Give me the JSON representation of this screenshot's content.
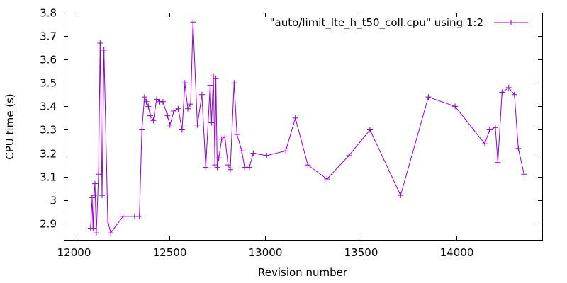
{
  "chart_data": {
    "type": "line",
    "title": "",
    "xlabel": "Revision number",
    "ylabel": "CPU time (s)",
    "xlim": [
      11950,
      14450
    ],
    "ylim": [
      2.83,
      3.8
    ],
    "xticks": [
      12000,
      12500,
      13000,
      13500,
      14000
    ],
    "xtick_labels": [
      "12000",
      "12500",
      "13000",
      "13500",
      "14000"
    ],
    "yticks": [
      2.9,
      3.0,
      3.1,
      3.2,
      3.3,
      3.4,
      3.5,
      3.6,
      3.7,
      3.8
    ],
    "ytick_labels": [
      "2.9",
      "3",
      "3.1",
      "3.2",
      "3.3",
      "3.4",
      "3.5",
      "3.6",
      "3.7",
      "3.8"
    ],
    "grid": false,
    "legend_position": "top-right",
    "marker": "plus",
    "color": "#9400d3",
    "series": [
      {
        "name": "\"auto/limit_lte_h_t50_coll.cpu\" using 1:2",
        "x": [
          12090,
          12098,
          12103,
          12108,
          12113,
          12120,
          12132,
          12140,
          12150,
          12160,
          12180,
          12195,
          12260,
          12320,
          12345,
          12358,
          12372,
          12382,
          12392,
          12402,
          12418,
          12435,
          12452,
          12468,
          12492,
          12505,
          12525,
          12548,
          12568,
          12583,
          12598,
          12613,
          12625,
          12648,
          12672,
          12692,
          12715,
          12722,
          12732,
          12740,
          12745,
          12752,
          12760,
          12775,
          12792,
          12808,
          12820,
          12840,
          12855,
          12880,
          12895,
          12920,
          12940,
          13010,
          13110,
          13160,
          13225,
          13325,
          13440,
          13550,
          13710,
          13855,
          13995,
          14150,
          14175,
          14205,
          14218,
          14240,
          14275,
          14305,
          14325,
          14355
        ],
        "y": [
          2.88,
          3.01,
          2.88,
          3.02,
          3.07,
          2.86,
          3.11,
          3.67,
          3.02,
          3.64,
          2.91,
          2.86,
          2.93,
          2.93,
          2.93,
          3.3,
          3.44,
          3.42,
          3.4,
          3.36,
          3.34,
          3.43,
          3.42,
          3.42,
          3.36,
          3.32,
          3.38,
          3.39,
          3.3,
          3.5,
          3.39,
          3.41,
          3.76,
          3.32,
          3.45,
          3.14,
          3.49,
          3.33,
          3.53,
          3.15,
          3.52,
          3.14,
          3.18,
          3.26,
          3.27,
          3.15,
          3.13,
          3.5,
          3.28,
          3.21,
          3.14,
          3.14,
          3.2,
          3.19,
          3.21,
          3.35,
          3.15,
          3.09,
          3.19,
          3.3,
          3.02,
          3.44,
          3.4,
          3.24,
          3.3,
          3.31,
          3.16,
          3.46,
          3.48,
          3.45,
          3.22,
          3.11
        ]
      }
    ]
  }
}
